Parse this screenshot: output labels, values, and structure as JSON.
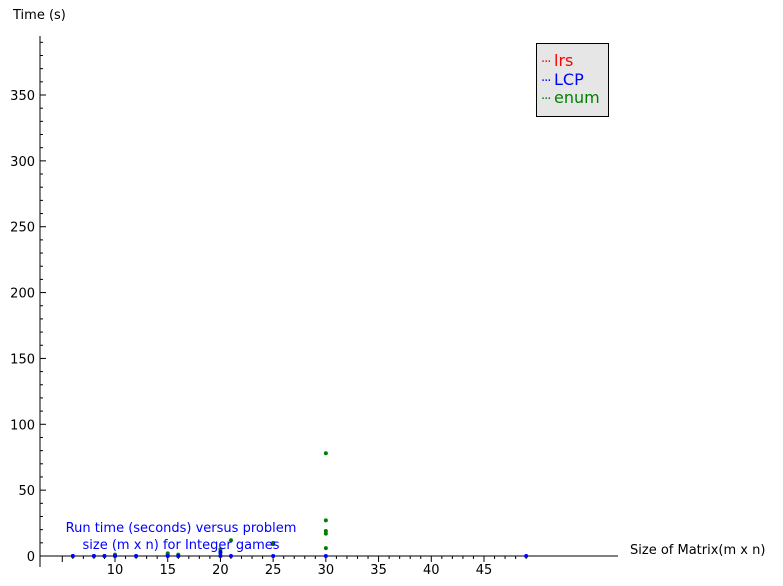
{
  "chart_data": {
    "type": "scatter",
    "xlabel": "Size of Matrix(m x n)",
    "ylabel": "Time (s)",
    "x_ticks": [
      10,
      15,
      20,
      25,
      30,
      35,
      40,
      45
    ],
    "y_ticks": [
      0,
      50,
      100,
      150,
      200,
      250,
      300,
      350
    ],
    "xlim": [
      4,
      50
    ],
    "ylim": [
      -6,
      395
    ],
    "grid": false,
    "legend_position": "top-right",
    "annotation": "Run time (seconds) versus problem size (m x n) for Integer games",
    "series": [
      {
        "name": "lrs",
        "color": "#ff0000",
        "points": []
      },
      {
        "name": "LCP",
        "color": "#0000ff",
        "points": [
          [
            6,
            0
          ],
          [
            8,
            0
          ],
          [
            9,
            0
          ],
          [
            10,
            0
          ],
          [
            12,
            0
          ],
          [
            15,
            0
          ],
          [
            16,
            0
          ],
          [
            20,
            0
          ],
          [
            20,
            3
          ],
          [
            21,
            0
          ],
          [
            25,
            0
          ],
          [
            30,
            0
          ],
          [
            49,
            0
          ]
        ]
      },
      {
        "name": "enum",
        "color": "#008000",
        "points": [
          [
            6,
            0
          ],
          [
            8,
            0
          ],
          [
            9,
            0
          ],
          [
            10,
            0
          ],
          [
            10,
            1
          ],
          [
            12,
            0
          ],
          [
            15,
            1
          ],
          [
            15,
            2
          ],
          [
            16,
            0
          ],
          [
            16,
            1
          ],
          [
            20,
            2
          ],
          [
            20,
            5
          ],
          [
            21,
            12
          ],
          [
            25,
            9
          ],
          [
            25,
            10
          ],
          [
            30,
            6
          ],
          [
            30,
            17
          ],
          [
            30,
            19
          ],
          [
            30,
            27
          ],
          [
            30,
            78
          ]
        ]
      }
    ]
  }
}
